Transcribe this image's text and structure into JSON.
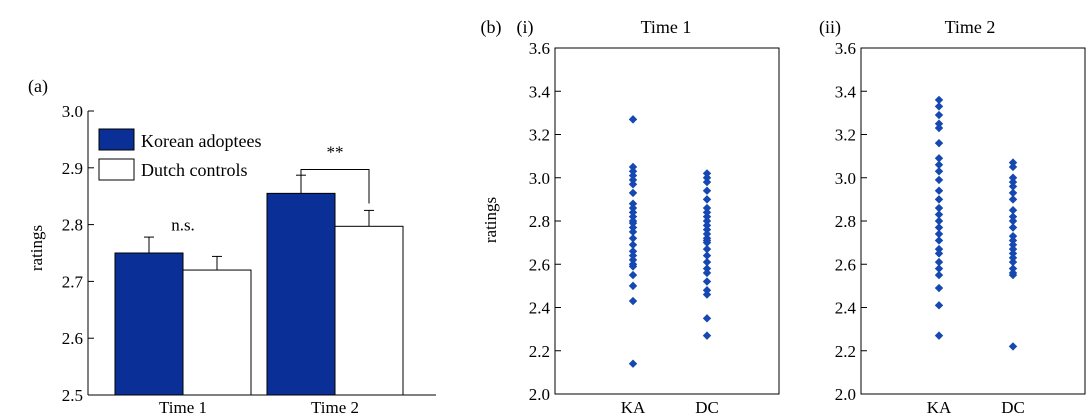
{
  "chart_data": [
    {
      "type": "bar",
      "panel_label": "(a)",
      "ylabel": "ratings",
      "ylim": [
        2.5,
        3.0
      ],
      "yticks": [
        "2.5",
        "2.6",
        "2.7",
        "2.8",
        "2.9",
        "3.0"
      ],
      "categories": [
        "Time 1",
        "Time 2"
      ],
      "series": [
        {
          "name": "Korean adoptees",
          "color": "#0a2f96",
          "values": [
            2.75,
            2.855
          ],
          "error": [
            0.028,
            0.032
          ]
        },
        {
          "name": "Dutch controls",
          "color": "#ffffff",
          "values": [
            2.72,
            2.797
          ],
          "error": [
            0.024,
            0.028
          ]
        }
      ],
      "legend": "top-left",
      "annotations": [
        {
          "text": "n.s.",
          "category_index": 0,
          "y": 2.79
        },
        {
          "text": "**",
          "category_index": 1,
          "y": 2.918
        }
      ]
    },
    {
      "type": "scatter",
      "panel_label": "(b)",
      "subpanel_label": "(i)",
      "title": "Time 1",
      "ylabel": "ratings",
      "ylim": [
        2.0,
        3.6
      ],
      "yticks": [
        "2.0",
        "2.2",
        "2.4",
        "2.6",
        "2.8",
        "3.0",
        "3.2",
        "3.4",
        "3.6"
      ],
      "categories": [
        "KA",
        "DC"
      ],
      "marker_color": "#1548b0",
      "groups": [
        {
          "name": "KA",
          "values": [
            3.27,
            3.05,
            3.03,
            3.01,
            2.99,
            2.97,
            2.93,
            2.88,
            2.86,
            2.84,
            2.82,
            2.8,
            2.79,
            2.77,
            2.75,
            2.72,
            2.69,
            2.66,
            2.64,
            2.62,
            2.6,
            2.59,
            2.55,
            2.5,
            2.43,
            2.14
          ]
        },
        {
          "name": "DC",
          "values": [
            3.02,
            3.0,
            2.98,
            2.94,
            2.9,
            2.86,
            2.84,
            2.82,
            2.8,
            2.78,
            2.76,
            2.74,
            2.72,
            2.71,
            2.7,
            2.67,
            2.64,
            2.61,
            2.58,
            2.56,
            2.52,
            2.48,
            2.46,
            2.35,
            2.27
          ]
        }
      ]
    },
    {
      "type": "scatter",
      "subpanel_label": "(ii)",
      "title": "Time 2",
      "ylim": [
        2.0,
        3.6
      ],
      "yticks": [
        "2.0",
        "2.2",
        "2.4",
        "2.6",
        "2.8",
        "3.0",
        "3.2",
        "3.4",
        "3.6"
      ],
      "categories": [
        "KA",
        "DC"
      ],
      "marker_color": "#1548b0",
      "groups": [
        {
          "name": "KA",
          "values": [
            3.36,
            3.33,
            3.29,
            3.25,
            3.23,
            3.16,
            3.09,
            3.06,
            3.03,
            2.99,
            2.94,
            2.9,
            2.86,
            2.83,
            2.8,
            2.77,
            2.74,
            2.71,
            2.67,
            2.65,
            2.61,
            2.58,
            2.55,
            2.49,
            2.41,
            2.27
          ]
        },
        {
          "name": "DC",
          "values": [
            3.07,
            3.05,
            3.0,
            2.98,
            2.96,
            2.93,
            2.9,
            2.85,
            2.82,
            2.8,
            2.77,
            2.73,
            2.71,
            2.69,
            2.67,
            2.65,
            2.63,
            2.61,
            2.58,
            2.56,
            2.55,
            2.22
          ]
        }
      ]
    }
  ]
}
